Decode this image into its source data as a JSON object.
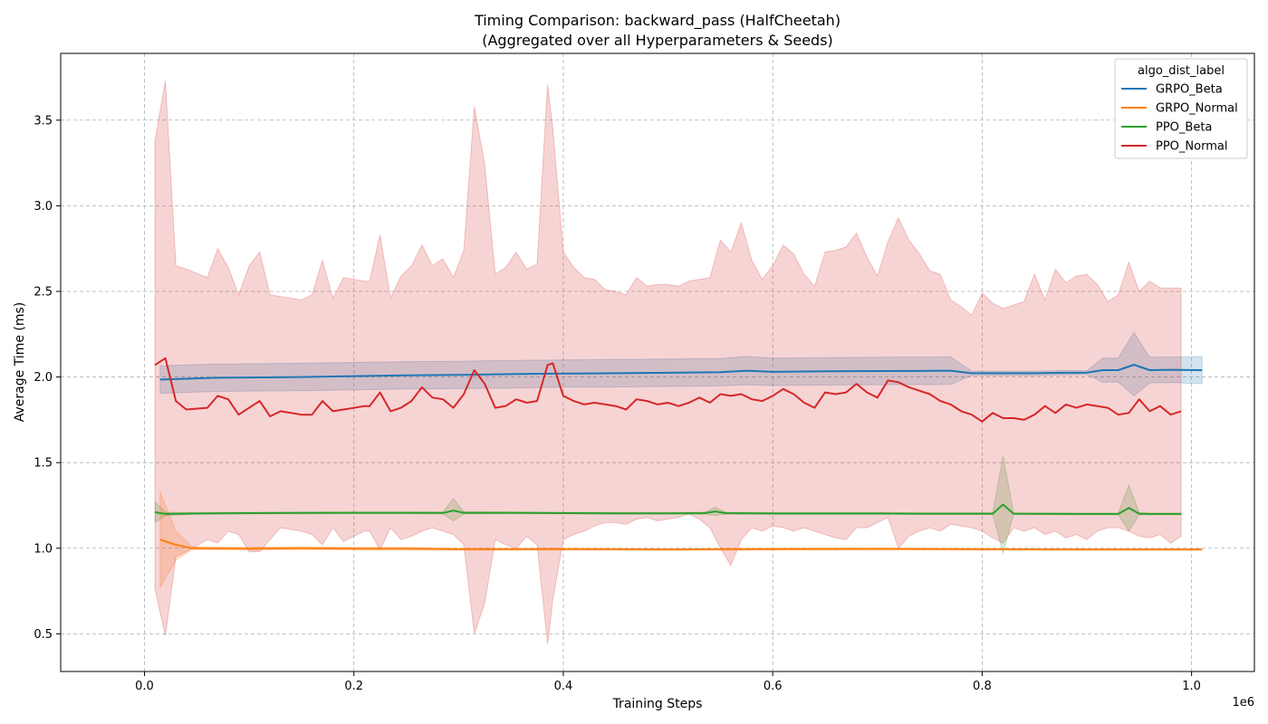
{
  "chart_data": {
    "type": "line",
    "title": "Timing Comparison: backward_pass (HalfCheetah)",
    "subtitle": "(Aggregated over all Hyperparameters & Seeds)",
    "xlabel": "Training Steps",
    "ylabel": "Average Time (ms)",
    "x_offset_label": "1e6",
    "xlim": [
      -80000,
      1060000
    ],
    "ylim": [
      0.28,
      3.89
    ],
    "xticks": [
      0,
      200000,
      400000,
      600000,
      800000,
      1000000
    ],
    "xtick_labels": [
      "0.0",
      "0.2",
      "0.4",
      "0.6",
      "0.8",
      "1.0"
    ],
    "yticks": [
      0.5,
      1.0,
      1.5,
      2.0,
      2.5,
      3.0,
      3.5
    ],
    "ytick_labels": [
      "0.5",
      "1.0",
      "1.5",
      "2.0",
      "2.5",
      "3.0",
      "3.5"
    ],
    "grid": true,
    "legend": {
      "title": "algo_dist_label",
      "placement": "top-right"
    },
    "series": [
      {
        "name": "GRPO_Beta",
        "color": "#1f77b4",
        "x": [
          15000,
          40000,
          65000,
          100000,
          150000,
          200000,
          250000,
          300000,
          350000,
          400000,
          450000,
          500000,
          550000,
          575000,
          600000,
          650000,
          700000,
          750000,
          770000,
          790000,
          820000,
          850000,
          880000,
          900000,
          915000,
          930000,
          945000,
          960000,
          980000,
          1010000
        ],
        "y": [
          1.985,
          1.99,
          1.995,
          1.997,
          2.0,
          2.005,
          2.01,
          2.012,
          2.017,
          2.02,
          2.022,
          2.025,
          2.028,
          2.037,
          2.03,
          2.033,
          2.035,
          2.036,
          2.037,
          2.022,
          2.022,
          2.022,
          2.025,
          2.026,
          2.04,
          2.04,
          2.072,
          2.04,
          2.042,
          2.04
        ],
        "lower": [
          1.905,
          1.91,
          1.915,
          1.918,
          1.92,
          1.925,
          1.93,
          1.932,
          1.935,
          1.94,
          1.942,
          1.945,
          1.948,
          1.955,
          1.95,
          1.953,
          1.955,
          1.956,
          1.957,
          2.01,
          2.01,
          2.01,
          2.012,
          2.015,
          1.97,
          1.97,
          1.89,
          1.965,
          1.968,
          1.96
        ],
        "upper": [
          2.065,
          2.07,
          2.075,
          2.077,
          2.08,
          2.085,
          2.09,
          2.092,
          2.097,
          2.1,
          2.102,
          2.105,
          2.108,
          2.12,
          2.11,
          2.113,
          2.115,
          2.116,
          2.117,
          2.035,
          2.034,
          2.034,
          2.038,
          2.037,
          2.11,
          2.11,
          2.26,
          2.115,
          2.116,
          2.12
        ]
      },
      {
        "name": "GRPO_Normal",
        "color": "#ff7f0e",
        "x": [
          15000,
          30000,
          45000,
          100000,
          150000,
          200000,
          250000,
          300000,
          350000,
          400000,
          500000,
          600000,
          700000,
          800000,
          900000,
          1010000
        ],
        "y": [
          1.05,
          1.02,
          1.0,
          0.998,
          1.0,
          0.998,
          0.998,
          0.994,
          0.994,
          0.995,
          0.993,
          0.995,
          0.996,
          0.994,
          0.993,
          0.993
        ],
        "lower": [
          0.77,
          0.93,
          0.99,
          0.99,
          0.99,
          0.99,
          0.99,
          0.988,
          0.988,
          0.989,
          0.988,
          0.989,
          0.99,
          0.989,
          0.988,
          0.988
        ],
        "upper": [
          1.33,
          1.1,
          1.01,
          1.006,
          1.008,
          1.006,
          1.006,
          1.0,
          1.0,
          1.001,
          0.998,
          1.001,
          1.002,
          0.999,
          0.998,
          0.998
        ]
      },
      {
        "name": "PPO_Beta",
        "color": "#2ca02c",
        "x": [
          10000,
          20000,
          50000,
          100000,
          150000,
          200000,
          250000,
          285000,
          295000,
          305000,
          350000,
          400000,
          450000,
          500000,
          535000,
          545000,
          555000,
          600000,
          650000,
          700000,
          750000,
          800000,
          810000,
          820000,
          830000,
          900000,
          930000,
          940000,
          950000,
          960000,
          990000
        ],
        "y": [
          1.21,
          1.2,
          1.203,
          1.205,
          1.206,
          1.207,
          1.207,
          1.206,
          1.22,
          1.207,
          1.207,
          1.205,
          1.204,
          1.204,
          1.205,
          1.215,
          1.205,
          1.203,
          1.203,
          1.203,
          1.202,
          1.202,
          1.202,
          1.255,
          1.202,
          1.2,
          1.2,
          1.235,
          1.202,
          1.2,
          1.2
        ],
        "lower": [
          1.15,
          1.19,
          1.198,
          1.2,
          1.201,
          1.202,
          1.202,
          1.2,
          1.16,
          1.2,
          1.202,
          1.2,
          1.199,
          1.199,
          1.199,
          1.19,
          1.199,
          1.198,
          1.198,
          1.198,
          1.197,
          1.197,
          1.197,
          0.97,
          1.197,
          1.195,
          1.195,
          1.1,
          1.196,
          1.195,
          1.195
        ],
        "upper": [
          1.27,
          1.21,
          1.208,
          1.21,
          1.211,
          1.212,
          1.212,
          1.212,
          1.29,
          1.214,
          1.212,
          1.21,
          1.209,
          1.209,
          1.211,
          1.24,
          1.211,
          1.208,
          1.208,
          1.208,
          1.207,
          1.207,
          1.207,
          1.54,
          1.207,
          1.205,
          1.205,
          1.37,
          1.208,
          1.205,
          1.205
        ]
      },
      {
        "name": "PPO_Normal",
        "color": "#d62728",
        "x": [
          10000,
          20000,
          30000,
          40000,
          60000,
          70000,
          80000,
          90000,
          100000,
          110000,
          120000,
          130000,
          150000,
          160000,
          170000,
          180000,
          190000,
          210000,
          215000,
          225000,
          235000,
          245000,
          255000,
          265000,
          275000,
          285000,
          295000,
          305000,
          315000,
          325000,
          335000,
          345000,
          355000,
          365000,
          375000,
          385000,
          390000,
          400000,
          410000,
          420000,
          430000,
          440000,
          450000,
          460000,
          470000,
          480000,
          490000,
          500000,
          510000,
          520000,
          530000,
          540000,
          550000,
          560000,
          570000,
          580000,
          590000,
          600000,
          610000,
          620000,
          630000,
          640000,
          650000,
          660000,
          670000,
          680000,
          690000,
          700000,
          710000,
          720000,
          730000,
          740000,
          750000,
          760000,
          770000,
          780000,
          790000,
          800000,
          810000,
          820000,
          830000,
          840000,
          850000,
          860000,
          870000,
          880000,
          890000,
          900000,
          910000,
          920000,
          930000,
          940000,
          950000,
          960000,
          970000,
          980000,
          990000
        ],
        "y": [
          2.07,
          2.11,
          1.86,
          1.81,
          1.82,
          1.89,
          1.87,
          1.78,
          1.82,
          1.86,
          1.77,
          1.8,
          1.78,
          1.78,
          1.86,
          1.8,
          1.81,
          1.83,
          1.83,
          1.91,
          1.8,
          1.82,
          1.86,
          1.94,
          1.88,
          1.87,
          1.82,
          1.9,
          2.04,
          1.96,
          1.82,
          1.83,
          1.87,
          1.85,
          1.86,
          2.07,
          2.08,
          1.89,
          1.86,
          1.84,
          1.85,
          1.84,
          1.83,
          1.81,
          1.87,
          1.86,
          1.84,
          1.85,
          1.83,
          1.85,
          1.88,
          1.85,
          1.9,
          1.89,
          1.9,
          1.87,
          1.86,
          1.89,
          1.93,
          1.9,
          1.85,
          1.82,
          1.91,
          1.9,
          1.91,
          1.96,
          1.91,
          1.88,
          1.98,
          1.97,
          1.94,
          1.92,
          1.9,
          1.86,
          1.84,
          1.8,
          1.78,
          1.74,
          1.79,
          1.76,
          1.76,
          1.75,
          1.78,
          1.83,
          1.79,
          1.84,
          1.82,
          1.84,
          1.83,
          1.82,
          1.78,
          1.79,
          1.87,
          1.8,
          1.83,
          1.78,
          1.8
        ],
        "lower": [
          0.76,
          0.49,
          0.95,
          0.98,
          1.05,
          1.03,
          1.1,
          1.08,
          0.98,
          0.98,
          1.05,
          1.12,
          1.1,
          1.08,
          1.02,
          1.12,
          1.04,
          1.1,
          1.1,
          0.99,
          1.12,
          1.05,
          1.07,
          1.1,
          1.12,
          1.1,
          1.08,
          1.02,
          0.5,
          0.68,
          1.05,
          1.02,
          1.0,
          1.07,
          1.02,
          0.44,
          0.7,
          1.05,
          1.08,
          1.1,
          1.13,
          1.15,
          1.15,
          1.14,
          1.17,
          1.18,
          1.16,
          1.17,
          1.18,
          1.2,
          1.17,
          1.12,
          1.0,
          0.9,
          1.05,
          1.12,
          1.1,
          1.13,
          1.12,
          1.1,
          1.12,
          1.1,
          1.08,
          1.06,
          1.05,
          1.12,
          1.12,
          1.15,
          1.18,
          1.0,
          1.07,
          1.1,
          1.12,
          1.1,
          1.14,
          1.13,
          1.12,
          1.1,
          1.06,
          1.03,
          1.12,
          1.1,
          1.12,
          1.08,
          1.1,
          1.06,
          1.08,
          1.05,
          1.1,
          1.12,
          1.12,
          1.1,
          1.07,
          1.06,
          1.08,
          1.03,
          1.07
        ],
        "upper": [
          3.38,
          3.73,
          2.65,
          2.63,
          2.58,
          2.75,
          2.64,
          2.48,
          2.65,
          2.73,
          2.48,
          2.47,
          2.45,
          2.48,
          2.68,
          2.46,
          2.58,
          2.56,
          2.56,
          2.83,
          2.46,
          2.59,
          2.65,
          2.77,
          2.65,
          2.69,
          2.58,
          2.74,
          3.58,
          3.24,
          2.6,
          2.64,
          2.73,
          2.63,
          2.66,
          3.71,
          3.45,
          2.73,
          2.64,
          2.58,
          2.57,
          2.51,
          2.5,
          2.48,
          2.58,
          2.53,
          2.54,
          2.54,
          2.53,
          2.56,
          2.57,
          2.58,
          2.8,
          2.73,
          2.9,
          2.68,
          2.57,
          2.65,
          2.77,
          2.72,
          2.6,
          2.53,
          2.73,
          2.74,
          2.76,
          2.84,
          2.7,
          2.59,
          2.79,
          2.93,
          2.8,
          2.72,
          2.62,
          2.6,
          2.45,
          2.41,
          2.36,
          2.49,
          2.43,
          2.4,
          2.42,
          2.44,
          2.6,
          2.45,
          2.63,
          2.55,
          2.59,
          2.6,
          2.54,
          2.44,
          2.48,
          2.67,
          2.5,
          2.56,
          2.52,
          2.52,
          2.52
        ]
      }
    ]
  }
}
